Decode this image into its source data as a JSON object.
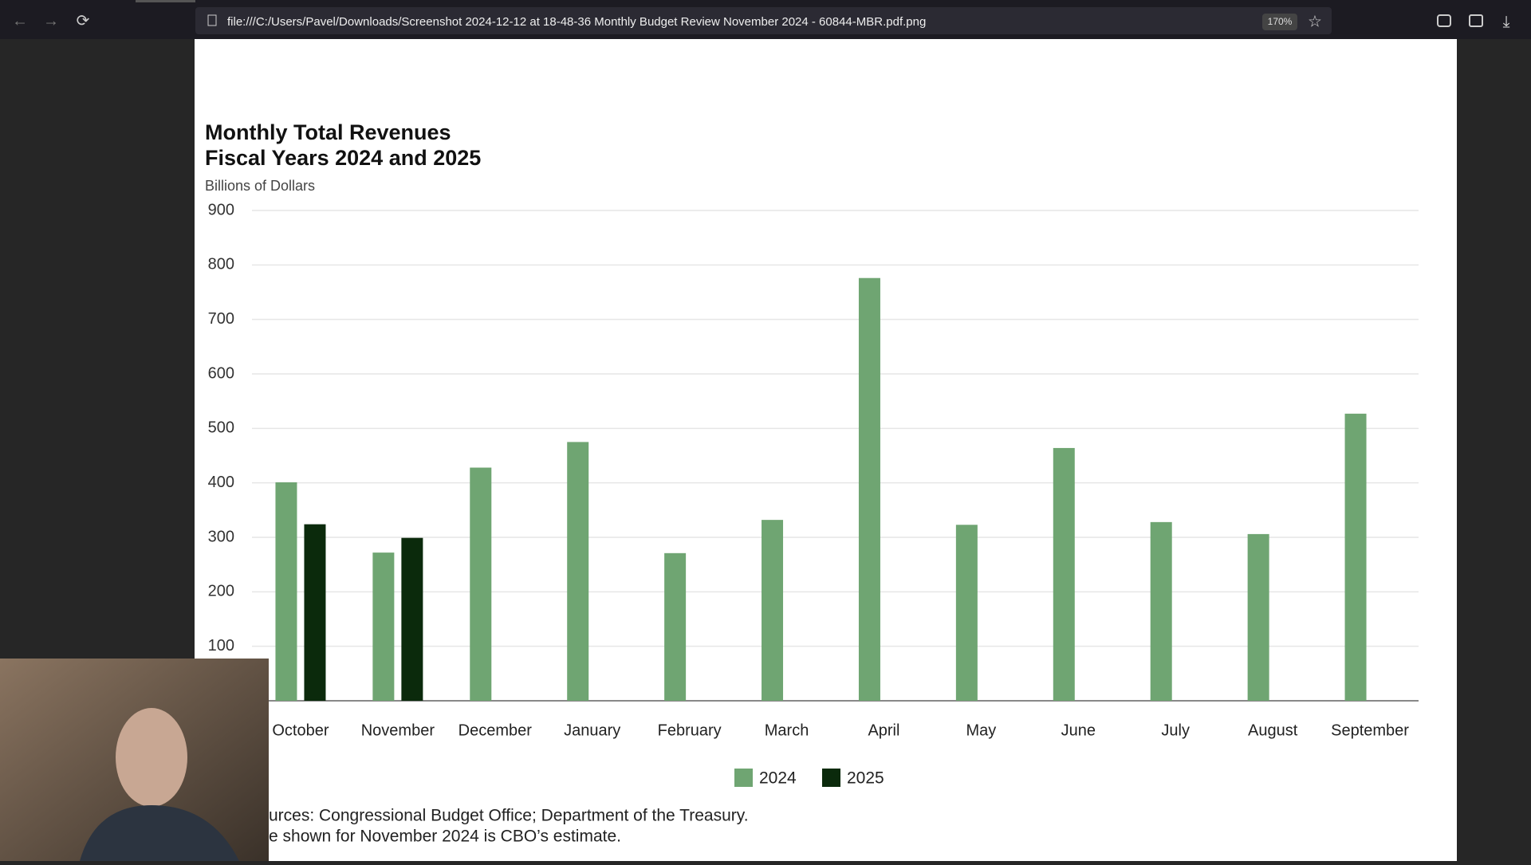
{
  "browser": {
    "url": "file:///C:/Users/Pavel/Downloads/Screenshot 2024-12-12 at 18-48-36 Monthly Budget Review November 2024 - 60844-MBR.pdf.png",
    "zoom": "170%"
  },
  "chart_data": {
    "type": "bar",
    "title": "Monthly Total Revenues",
    "subtitle": "Fiscal Years 2024 and 2025",
    "y_label": "Billions of Dollars",
    "categories": [
      "October",
      "November",
      "December",
      "January",
      "February",
      "March",
      "April",
      "May",
      "June",
      "July",
      "August",
      "September"
    ],
    "series": [
      {
        "name": "2024",
        "color": "#6fa572",
        "values": [
          401,
          272,
          428,
          475,
          271,
          332,
          776,
          323,
          464,
          328,
          306,
          527
        ]
      },
      {
        "name": "2025",
        "color": "#0b2a0c",
        "values": [
          324,
          299,
          null,
          null,
          null,
          null,
          null,
          null,
          null,
          null,
          null,
          null
        ]
      }
    ],
    "ylim": [
      0,
      900
    ],
    "yticks": [
      100,
      200,
      300,
      400,
      500,
      600,
      700,
      800,
      900
    ],
    "grid": true,
    "notes": [
      "urces: Congressional Budget Office; Department of the Treasury.",
      "e shown for November 2024 is CBO’s estimate."
    ]
  }
}
